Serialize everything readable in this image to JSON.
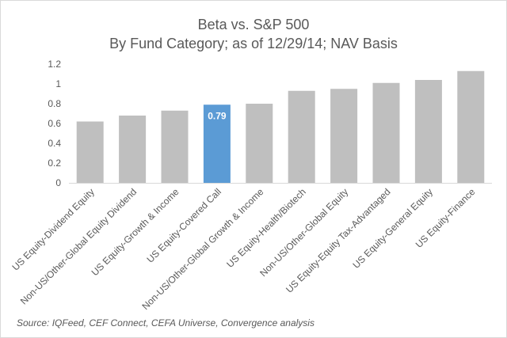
{
  "chart_data": {
    "type": "bar",
    "title": "Beta vs. S&P 500",
    "subtitle": "By Fund Category; as of 12/29/14; NAV Basis",
    "categories": [
      "US Equity-Dividend Equity",
      "Non-US/Other-Global Equity Dividend",
      "US Equity-Growth & Income",
      "US Equity-Covered Call",
      "Non-US/Other-Global Growth & Income",
      "US Equity-Health/Biotech",
      "Non-US/Other-Global Equity",
      "US Equity-Equity Tax-Advantaged",
      "US Equity-General Equity",
      "US Equity-Finance"
    ],
    "values": [
      0.62,
      0.68,
      0.73,
      0.79,
      0.8,
      0.93,
      0.95,
      1.01,
      1.04,
      1.13
    ],
    "highlight_index": 3,
    "data_labels": [
      {
        "index": 3,
        "text": "0.79"
      }
    ],
    "ylim": [
      0,
      1.2
    ],
    "yticks": [
      0,
      0.2,
      0.4,
      0.6,
      0.8,
      1,
      1.2
    ],
    "ytick_labels": [
      "0",
      "0.2",
      "0.4",
      "0.6",
      "0.8",
      "1",
      "1.2"
    ],
    "xlabel": "",
    "ylabel": "",
    "grid": false,
    "legend": "none",
    "colors": {
      "bar": "#bfbfbf",
      "highlight": "#5b9bd5",
      "axis": "#d9d9d9",
      "text": "#595959"
    }
  },
  "source": "Source:  IQFeed, CEF Connect, CEFA Universe, Convergence analysis"
}
